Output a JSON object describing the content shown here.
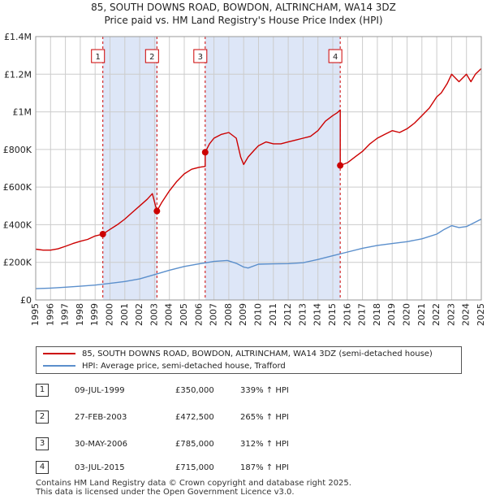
{
  "title_line1": "85, SOUTH DOWNS ROAD, BOWDON, ALTRINCHAM, WA14 3DZ",
  "title_line2": "Price paid vs. HM Land Registry's House Price Index (HPI)",
  "colors": {
    "property": "#cc0000",
    "hpi": "#5b8fcc",
    "shade": "#dde6f7",
    "grid": "#cccccc",
    "vline": "#cc0000"
  },
  "chart_data": {
    "type": "line",
    "title": "85, SOUTH DOWNS ROAD, BOWDON, ALTRINCHAM, WA14 3DZ — Price paid vs. HM Land Registry's House Price Index (HPI)",
    "xlim": [
      1995,
      2025
    ],
    "ylim": [
      0,
      1400000
    ],
    "y_ticks": [
      0,
      200000,
      400000,
      600000,
      800000,
      1000000,
      1200000,
      1400000
    ],
    "y_tick_labels": [
      "£0",
      "£200K",
      "£400K",
      "£600K",
      "£800K",
      "£1M",
      "£1.2M",
      "£1.4M"
    ],
    "x_ticks": [
      1995,
      1996,
      1997,
      1998,
      1999,
      2000,
      2001,
      2002,
      2003,
      2004,
      2005,
      2006,
      2007,
      2008,
      2009,
      2010,
      2011,
      2012,
      2013,
      2014,
      2015,
      2016,
      2017,
      2018,
      2019,
      2020,
      2021,
      2022,
      2023,
      2024,
      2025
    ],
    "grid": true,
    "series": [
      {
        "name": "85, SOUTH DOWNS ROAD, BOWDON, ALTRINCHAM, WA14 3DZ (semi-detached house)",
        "x": [
          1995,
          1995.5,
          1996,
          1996.5,
          1997,
          1997.5,
          1998,
          1998.5,
          1999,
          1999.52,
          1999.52,
          2000,
          2000.5,
          2001,
          2001.5,
          2002,
          2002.5,
          2002.85,
          2003.16,
          2003.16,
          2003.5,
          2004,
          2004.5,
          2005,
          2005.5,
          2006,
          2006.41,
          2006.41,
          2006.7,
          2007,
          2007.5,
          2008,
          2008.5,
          2008.8,
          2009,
          2009.3,
          2009.7,
          2010,
          2010.5,
          2011,
          2011.5,
          2012,
          2012.5,
          2013,
          2013.5,
          2014,
          2014.5,
          2015,
          2015.3,
          2015.5,
          2015.5,
          2016,
          2016.5,
          2017,
          2017.5,
          2018,
          2018.5,
          2019,
          2019.5,
          2020,
          2020.5,
          2021,
          2021.5,
          2022,
          2022.3,
          2022.7,
          2023,
          2023.5,
          2024,
          2024.3,
          2024.6,
          2025
        ],
        "values": [
          270000,
          265000,
          265000,
          272000,
          285000,
          300000,
          312000,
          322000,
          340000,
          350000,
          350000,
          375000,
          400000,
          430000,
          465000,
          500000,
          535000,
          565000,
          472500,
          472500,
          520000,
          580000,
          630000,
          670000,
          695000,
          705000,
          710000,
          785000,
          830000,
          860000,
          880000,
          890000,
          860000,
          760000,
          720000,
          760000,
          795000,
          820000,
          840000,
          830000,
          830000,
          840000,
          850000,
          860000,
          870000,
          900000,
          950000,
          980000,
          995000,
          1010000,
          715000,
          730000,
          760000,
          790000,
          830000,
          860000,
          880000,
          900000,
          890000,
          910000,
          940000,
          980000,
          1020000,
          1080000,
          1100000,
          1150000,
          1200000,
          1160000,
          1200000,
          1160000,
          1200000,
          1230000
        ],
        "color": "#cc0000"
      },
      {
        "name": "HPI: Average price, semi-detached house, Trafford",
        "x": [
          1995,
          1996,
          1997,
          1998,
          1999,
          2000,
          2001,
          2002,
          2003,
          2004,
          2005,
          2006,
          2007,
          2007.9,
          2008.5,
          2009,
          2009.3,
          2010,
          2011,
          2012,
          2013,
          2014,
          2015,
          2016,
          2017,
          2018,
          2019,
          2020,
          2021,
          2022,
          2022.5,
          2023,
          2023.5,
          2024,
          2024.5,
          2025
        ],
        "values": [
          60000,
          63000,
          68000,
          73000,
          79000,
          88000,
          98000,
          112000,
          135000,
          158000,
          178000,
          192000,
          205000,
          210000,
          195000,
          175000,
          170000,
          190000,
          192000,
          193000,
          198000,
          215000,
          235000,
          255000,
          275000,
          290000,
          300000,
          310000,
          325000,
          350000,
          375000,
          395000,
          385000,
          390000,
          410000,
          430000
        ],
        "color": "#5b8fcc"
      }
    ],
    "sales": [
      {
        "label": "1",
        "x": 1999.52,
        "value": 350000
      },
      {
        "label": "2",
        "x": 2003.16,
        "value": 472500
      },
      {
        "label": "3",
        "x": 2006.41,
        "value": 785000
      },
      {
        "label": "4",
        "x": 2015.5,
        "value": 715000
      }
    ],
    "shaded_periods": [
      [
        1999.52,
        2003.16
      ],
      [
        2006.41,
        2015.5
      ]
    ]
  },
  "legend": {
    "property_label": "85, SOUTH DOWNS ROAD, BOWDON, ALTRINCHAM, WA14 3DZ (semi-detached house)",
    "hpi_label": "HPI: Average price, semi-detached house, Trafford"
  },
  "transactions": [
    {
      "num": "1",
      "date": "09-JUL-1999",
      "price": "£350,000",
      "hpi": "339% ↑ HPI"
    },
    {
      "num": "2",
      "date": "27-FEB-2003",
      "price": "£472,500",
      "hpi": "265% ↑ HPI"
    },
    {
      "num": "3",
      "date": "30-MAY-2006",
      "price": "£785,000",
      "hpi": "312% ↑ HPI"
    },
    {
      "num": "4",
      "date": "03-JUL-2015",
      "price": "£715,000",
      "hpi": "187% ↑ HPI"
    }
  ],
  "footer": {
    "line1": "Contains HM Land Registry data © Crown copyright and database right 2025.",
    "line2": "This data is licensed under the Open Government Licence v3.0."
  }
}
